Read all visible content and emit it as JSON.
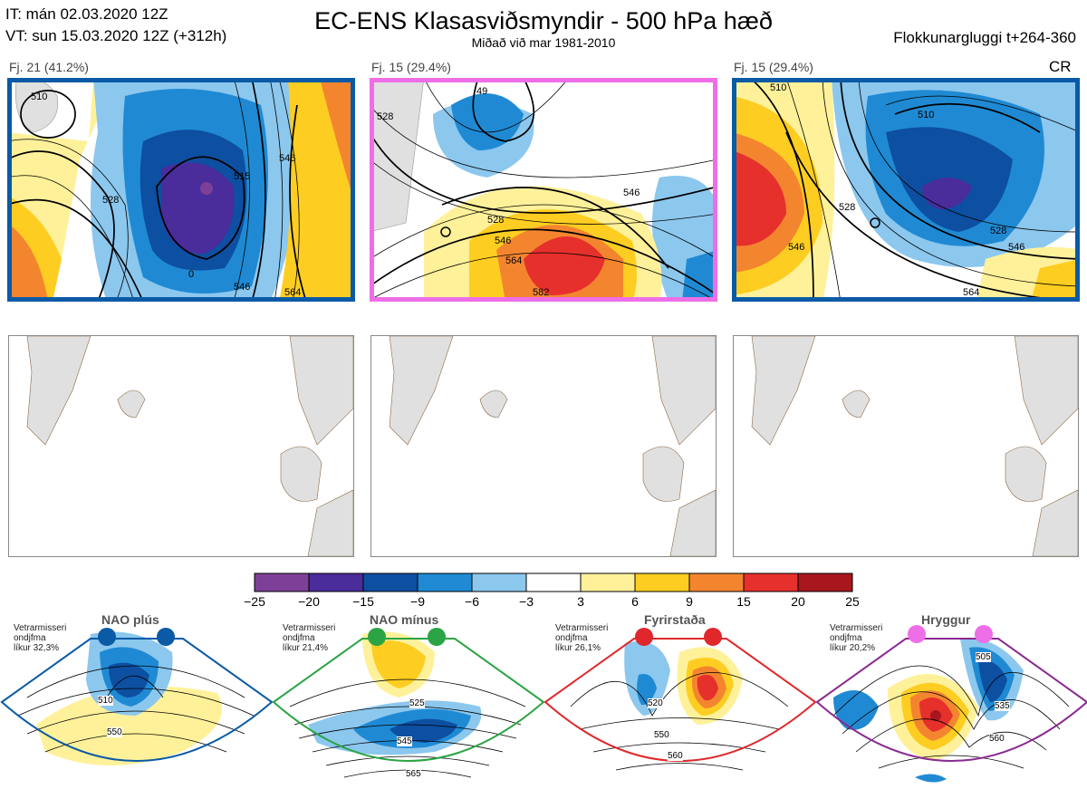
{
  "header": {
    "it_line": "IT: mán 02.03.2020 12Z",
    "vt_line": "VT: sun 15.03.2020 12Z  (+312h)",
    "title": "EC-ENS Klasasviðsmyndir - 500 hPa hæð",
    "subtitle": "Miðað við mar 1981-2010",
    "window": "Flokkunargluggi t+264-360"
  },
  "clusters": [
    {
      "label": "Fj. 21 (41.2%)",
      "border_color": "#0a5aa6",
      "tag": ""
    },
    {
      "label": "Fj. 15 (29.4%)",
      "border_color": "#ee6ee8",
      "tag": ""
    },
    {
      "label": "Fj. 15 (29.4%)",
      "border_color": "#0a5aa6",
      "tag": "CR"
    }
  ],
  "contour_labels": {
    "c1": [
      "510",
      "528",
      "515",
      "546",
      "564",
      "546",
      "0"
    ],
    "c2": [
      "528",
      "546",
      "564",
      "582",
      "528",
      "546",
      "49"
    ],
    "c3": [
      "510",
      "528",
      "546",
      "528",
      "546",
      "564",
      "510"
    ]
  },
  "colorbar": {
    "ticks": [
      "−25",
      "−20",
      "−15",
      "−9",
      "−6",
      "−3",
      "3",
      "6",
      "9",
      "15",
      "20",
      "25"
    ],
    "colors": [
      "#7e3f98",
      "#4a2c9b",
      "#0d4fa1",
      "#1f8ad3",
      "#8cc7ee",
      "#ffffff",
      "#fff19a",
      "#fecd21",
      "#f4852f",
      "#e6302c",
      "#a8161e"
    ]
  },
  "regimes": [
    {
      "name": "NAO plús",
      "note": [
        "Vetrarmisseri",
        "ondjfma",
        "líkur 32,3%"
      ],
      "color": "#0a5aa6",
      "dot": "#0a5aa6",
      "labels": [
        "510",
        "550"
      ]
    },
    {
      "name": "NAO mínus",
      "note": [
        "Vetrarmisseri",
        "ondjfma",
        "líkur 21,4%"
      ],
      "color": "#2aa444",
      "dot": "#2aa444",
      "labels": [
        "525",
        "545",
        "565"
      ]
    },
    {
      "name": "Fyrirstaða",
      "note": [
        "Vetrarmisseri",
        "ondjfma",
        "líkur 26,1%"
      ],
      "color": "#e0282c",
      "dot": "#e0282c",
      "labels": [
        "520",
        "550",
        "560"
      ]
    },
    {
      "name": "Hryggur",
      "note": [
        "Vetrarmisseri",
        "ondjfma",
        "líkur 20,2%"
      ],
      "color": "#8a2a90",
      "dot": "#ee6ee8",
      "labels": [
        "505",
        "535",
        "560"
      ]
    }
  ]
}
